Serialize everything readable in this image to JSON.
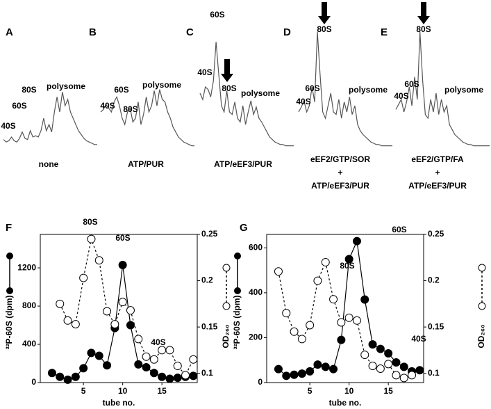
{
  "chart_data": [
    {
      "type": "trace",
      "label": "A",
      "ylim": [
        0,
        100
      ],
      "values": [
        8,
        6,
        7,
        10,
        7,
        6,
        9,
        14,
        9,
        8,
        15,
        10,
        11,
        10,
        15,
        25,
        15,
        20,
        14,
        30,
        42,
        30,
        46,
        35,
        40,
        30,
        25,
        20,
        15,
        12,
        9,
        7,
        6,
        5,
        4,
        4
      ],
      "annotations": [
        "40S",
        "60S",
        "80S",
        "polysome"
      ],
      "caption": [
        "none"
      ]
    },
    {
      "type": "trace",
      "label": "B",
      "ylim": [
        0,
        100
      ],
      "values": [
        30,
        32,
        36,
        33,
        30,
        38,
        42,
        35,
        25,
        20,
        30,
        33,
        22,
        25,
        38,
        20,
        28,
        42,
        30,
        35,
        47,
        35,
        48,
        40,
        38,
        30,
        25,
        18,
        14,
        10,
        8,
        6,
        5,
        4,
        3,
        3
      ],
      "annotations": [
        "40S",
        "60S",
        "80S",
        "polysome"
      ],
      "caption": [
        "ATP/PUR"
      ]
    },
    {
      "type": "trace",
      "label": "C",
      "ylim": [
        0,
        100
      ],
      "values": [
        45,
        40,
        50,
        48,
        42,
        55,
        86,
        60,
        35,
        30,
        47,
        30,
        28,
        38,
        25,
        22,
        35,
        20,
        30,
        39,
        28,
        34,
        25,
        22,
        18,
        14,
        10,
        8,
        6,
        5,
        4,
        4,
        3,
        3,
        3,
        3
      ],
      "annotations": [
        "60S",
        "40S",
        "80S",
        "polysome"
      ],
      "caption": [
        "ATP/eEF3/PUR"
      ]
    },
    {
      "type": "trace",
      "label": "D",
      "ylim": [
        0,
        100
      ],
      "values": [
        30,
        34,
        39,
        30,
        35,
        50,
        38,
        94,
        60,
        30,
        25,
        35,
        45,
        30,
        28,
        40,
        25,
        38,
        30,
        42,
        28,
        35,
        20,
        15,
        12,
        10,
        8,
        6,
        5,
        4,
        4,
        3,
        3,
        3,
        3,
        3
      ],
      "annotations": [
        "80S",
        "60S",
        "40S",
        "polysome"
      ],
      "caption": [
        "eEF2/GTP/SOR",
        "+",
        "ATP/eEF3/PUR"
      ]
    },
    {
      "type": "trace",
      "label": "E",
      "ylim": [
        0,
        100
      ],
      "values": [
        32,
        36,
        40,
        30,
        38,
        50,
        35,
        58,
        40,
        94,
        55,
        28,
        25,
        40,
        30,
        45,
        28,
        40,
        30,
        35,
        20,
        16,
        12,
        10,
        8,
        6,
        5,
        4,
        4,
        3,
        3,
        3,
        3,
        3,
        3,
        3
      ],
      "annotations": [
        "80S",
        "60S",
        "40S",
        "polysome"
      ],
      "caption": [
        "eEF2/GTP/FA",
        "+",
        "ATP/eEF3/PUR"
      ]
    },
    {
      "type": "dual-line",
      "label": "F",
      "xlabel": "tube no.",
      "ylabel": "³²P-60S (dpm)",
      "y2label": "OD₂₆₀",
      "xlim": [
        -0.5,
        19.5
      ],
      "xticks": [
        5,
        10,
        15
      ],
      "ylim": [
        0,
        1550
      ],
      "yticks": [
        0,
        400,
        800,
        1200
      ],
      "y2lim": [
        0.09,
        0.25
      ],
      "y2ticks": [
        0.1,
        0.15,
        0.2,
        0.25
      ],
      "series": [
        {
          "marker": "filled",
          "axis": "y",
          "x": [
            1,
            2,
            3,
            4,
            5,
            6,
            7,
            8,
            9,
            10,
            11,
            12,
            13,
            14,
            15,
            16,
            17,
            18,
            19
          ],
          "values": [
            100,
            60,
            30,
            60,
            150,
            310,
            280,
            180,
            570,
            1230,
            600,
            190,
            160,
            100,
            60,
            40,
            50,
            60,
            70
          ]
        },
        {
          "marker": "open",
          "axis": "y2",
          "x": [
            2,
            3,
            4,
            5,
            6,
            7,
            8,
            9,
            10,
            11,
            12,
            13,
            14,
            15,
            16,
            17,
            18,
            19
          ],
          "values": [
            0.175,
            0.157,
            0.153,
            0.203,
            0.245,
            0.222,
            0.167,
            0.153,
            0.177,
            0.168,
            0.137,
            0.118,
            0.115,
            0.125,
            0.125,
            0.108,
            0.098,
            0.115
          ]
        }
      ],
      "annotations": [
        "80S",
        "60S",
        "40S"
      ]
    },
    {
      "type": "dual-line",
      "label": "G",
      "xlabel": "tube no.",
      "ylabel": "³²P-60S (dpm)",
      "y2label": "OD₂₆₀",
      "xlim": [
        -0.5,
        19.5
      ],
      "xticks": [
        5,
        10,
        15
      ],
      "ylim": [
        0,
        660
      ],
      "yticks": [
        0,
        200,
        400,
        600
      ],
      "y2lim": [
        0.09,
        0.25
      ],
      "y2ticks": [
        0.1,
        0.15,
        0.2,
        0.25
      ],
      "series": [
        {
          "marker": "filled",
          "axis": "y",
          "x": [
            1,
            2,
            3,
            4,
            5,
            6,
            7,
            8,
            9,
            10,
            11,
            12,
            13,
            14,
            15,
            16,
            17,
            18,
            19
          ],
          "values": [
            60,
            30,
            35,
            40,
            50,
            80,
            70,
            60,
            190,
            550,
            630,
            370,
            170,
            150,
            130,
            90,
            70,
            50,
            55
          ]
        },
        {
          "marker": "open",
          "axis": "y2",
          "x": [
            1,
            2,
            3,
            4,
            5,
            6,
            7,
            8,
            9,
            10,
            11,
            12,
            13,
            14,
            15,
            16,
            17,
            18
          ],
          "values": [
            0.21,
            0.165,
            0.145,
            0.137,
            0.152,
            0.2,
            0.22,
            0.18,
            0.155,
            0.16,
            0.157,
            0.12,
            0.108,
            0.105,
            0.11,
            0.098,
            0.095,
            0.098
          ]
        }
      ],
      "annotations": [
        "80S",
        "60S",
        "40S"
      ]
    }
  ]
}
